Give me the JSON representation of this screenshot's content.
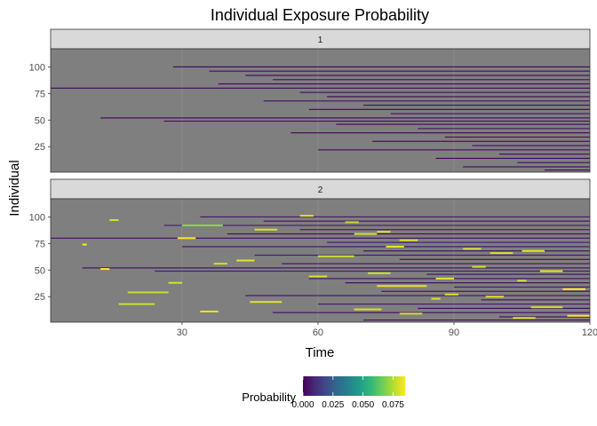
{
  "chart_data": {
    "type": "heatmap",
    "title": "Individual Exposure Probability",
    "xlabel": "Time",
    "ylabel": "Individual",
    "xlim": [
      1,
      120
    ],
    "ylim": [
      1,
      117
    ],
    "x_ticks": [
      30,
      60,
      90,
      120
    ],
    "y_ticks": [
      25,
      50,
      75,
      100
    ],
    "grid": true,
    "legend": {
      "title": "Probability",
      "position": "bottom",
      "tick_labels": [
        "0.000",
        "0.025",
        "0.050",
        "0.075"
      ],
      "min": 0.0,
      "max": 0.085
    },
    "colors": {
      "background": "#7F7F7F",
      "low": "#440154",
      "high": "#FDE725",
      "strip_fill": "#D9D9D9",
      "viridis": [
        "#440154",
        "#482878",
        "#3E4A89",
        "#31688E",
        "#26828E",
        "#1F9E89",
        "#35B779",
        "#6DCD59",
        "#B4DE2C",
        "#FDE725"
      ]
    },
    "facets": [
      {
        "label": "1",
        "description_of_values": "probability near zero; exposures start late",
        "rows": [
          {
            "id": 80,
            "start": 1,
            "value": 0.003
          },
          {
            "id": 100,
            "start": 28,
            "value": 0.002
          },
          {
            "id": 96,
            "start": 36,
            "value": 0.004
          },
          {
            "id": 92,
            "start": 44,
            "value": 0.003
          },
          {
            "id": 88,
            "start": 50,
            "value": 0.005
          },
          {
            "id": 84,
            "start": 38,
            "value": 0.002
          },
          {
            "id": 76,
            "start": 56,
            "value": 0.004
          },
          {
            "id": 72,
            "start": 62,
            "value": 0.003
          },
          {
            "id": 68,
            "start": 48,
            "value": 0.006
          },
          {
            "id": 64,
            "start": 70,
            "value": 0.004
          },
          {
            "id": 60,
            "start": 58,
            "value": 0.002
          },
          {
            "id": 56,
            "start": 76,
            "value": 0.005
          },
          {
            "id": 52,
            "start": 12,
            "value": 0.003
          },
          {
            "id": 49,
            "start": 26,
            "value": 0.004
          },
          {
            "id": 46,
            "start": 64,
            "value": 0.003
          },
          {
            "id": 42,
            "start": 82,
            "value": 0.006
          },
          {
            "id": 38,
            "start": 54,
            "value": 0.002
          },
          {
            "id": 34,
            "start": 88,
            "value": 0.004
          },
          {
            "id": 30,
            "start": 72,
            "value": 0.003
          },
          {
            "id": 26,
            "start": 94,
            "value": 0.005
          },
          {
            "id": 22,
            "start": 60,
            "value": 0.004
          },
          {
            "id": 18,
            "start": 100,
            "value": 0.003
          },
          {
            "id": 14,
            "start": 86,
            "value": 0.002
          },
          {
            "id": 10,
            "start": 104,
            "value": 0.005
          },
          {
            "id": 6,
            "start": 92,
            "value": 0.004
          },
          {
            "id": 3,
            "start": 110,
            "value": 0.003
          }
        ]
      },
      {
        "label": "2",
        "description_of_values": "mostly low probability with occasional high (yellow) exposure episodes",
        "rows": [
          {
            "id": 100,
            "start": 34,
            "value": 0.006
          },
          {
            "id": 96,
            "start": 48,
            "value": 0.004
          },
          {
            "id": 92,
            "start": 26,
            "value": 0.008
          },
          {
            "id": 88,
            "start": 56,
            "value": 0.005
          },
          {
            "id": 84,
            "start": 40,
            "value": 0.003
          },
          {
            "id": 80,
            "start": 1,
            "value": 0.004
          },
          {
            "id": 76,
            "start": 62,
            "value": 0.007
          },
          {
            "id": 72,
            "start": 30,
            "value": 0.005
          },
          {
            "id": 68,
            "start": 70,
            "value": 0.004
          },
          {
            "id": 64,
            "start": 46,
            "value": 0.006
          },
          {
            "id": 60,
            "start": 78,
            "value": 0.003
          },
          {
            "id": 56,
            "start": 52,
            "value": 0.005
          },
          {
            "id": 52,
            "start": 8,
            "value": 0.004
          },
          {
            "id": 49,
            "start": 24,
            "value": 0.006
          },
          {
            "id": 46,
            "start": 84,
            "value": 0.004
          },
          {
            "id": 42,
            "start": 58,
            "value": 0.005
          },
          {
            "id": 38,
            "start": 66,
            "value": 0.003
          },
          {
            "id": 34,
            "start": 90,
            "value": 0.006
          },
          {
            "id": 30,
            "start": 74,
            "value": 0.004
          },
          {
            "id": 26,
            "start": 44,
            "value": 0.005
          },
          {
            "id": 22,
            "start": 96,
            "value": 0.004
          },
          {
            "id": 18,
            "start": 60,
            "value": 0.006
          },
          {
            "id": 14,
            "start": 82,
            "value": 0.003
          },
          {
            "id": 10,
            "start": 50,
            "value": 0.005
          },
          {
            "id": 6,
            "start": 100,
            "value": 0.004
          },
          {
            "id": 3,
            "start": 70,
            "value": 0.005
          }
        ],
        "hotspots": [
          {
            "id": 101,
            "x0": 56,
            "x1": 59,
            "value": 0.082
          },
          {
            "id": 97,
            "x0": 14,
            "x1": 16,
            "value": 0.08
          },
          {
            "id": 95,
            "x0": 66,
            "x1": 69,
            "value": 0.078
          },
          {
            "id": 92,
            "x0": 30,
            "x1": 39,
            "value": 0.07
          },
          {
            "id": 88,
            "x0": 46,
            "x1": 51,
            "value": 0.08
          },
          {
            "id": 86,
            "x0": 73,
            "x1": 76,
            "value": 0.08
          },
          {
            "id": 84,
            "x0": 68,
            "x1": 73,
            "value": 0.078
          },
          {
            "id": 80,
            "x0": 29,
            "x1": 33,
            "value": 0.085
          },
          {
            "id": 78,
            "x0": 78,
            "x1": 82,
            "value": 0.08
          },
          {
            "id": 74,
            "x0": 8,
            "x1": 9,
            "value": 0.085
          },
          {
            "id": 72,
            "x0": 75,
            "x1": 79,
            "value": 0.082
          },
          {
            "id": 70,
            "x0": 92,
            "x1": 96,
            "value": 0.08
          },
          {
            "id": 68,
            "x0": 105,
            "x1": 110,
            "value": 0.082
          },
          {
            "id": 66,
            "x0": 98,
            "x1": 103,
            "value": 0.08
          },
          {
            "id": 63,
            "x0": 60,
            "x1": 68,
            "value": 0.08
          },
          {
            "id": 59,
            "x0": 42,
            "x1": 46,
            "value": 0.082
          },
          {
            "id": 56,
            "x0": 37,
            "x1": 40,
            "value": 0.078
          },
          {
            "id": 53,
            "x0": 94,
            "x1": 97,
            "value": 0.08
          },
          {
            "id": 51,
            "x0": 12,
            "x1": 14,
            "value": 0.085
          },
          {
            "id": 49,
            "x0": 109,
            "x1": 114,
            "value": 0.082
          },
          {
            "id": 47,
            "x0": 71,
            "x1": 76,
            "value": 0.078
          },
          {
            "id": 44,
            "x0": 58,
            "x1": 62,
            "value": 0.08
          },
          {
            "id": 42,
            "x0": 86,
            "x1": 90,
            "value": 0.082
          },
          {
            "id": 40,
            "x0": 104,
            "x1": 106,
            "value": 0.08
          },
          {
            "id": 38,
            "x0": 27,
            "x1": 30,
            "value": 0.08
          },
          {
            "id": 35,
            "x0": 73,
            "x1": 84,
            "value": 0.082
          },
          {
            "id": 32,
            "x0": 114,
            "x1": 119,
            "value": 0.085
          },
          {
            "id": 29,
            "x0": 18,
            "x1": 27,
            "value": 0.078
          },
          {
            "id": 27,
            "x0": 88,
            "x1": 91,
            "value": 0.08
          },
          {
            "id": 25,
            "x0": 97,
            "x1": 101,
            "value": 0.082
          },
          {
            "id": 23,
            "x0": 85,
            "x1": 87,
            "value": 0.08
          },
          {
            "id": 20,
            "x0": 45,
            "x1": 52,
            "value": 0.082
          },
          {
            "id": 18,
            "x0": 16,
            "x1": 24,
            "value": 0.078
          },
          {
            "id": 15,
            "x0": 107,
            "x1": 114,
            "value": 0.08
          },
          {
            "id": 13,
            "x0": 68,
            "x1": 74,
            "value": 0.08
          },
          {
            "id": 11,
            "x0": 34,
            "x1": 38,
            "value": 0.082
          },
          {
            "id": 9,
            "x0": 78,
            "x1": 83,
            "value": 0.08
          },
          {
            "id": 7,
            "x0": 115,
            "x1": 120,
            "value": 0.085
          },
          {
            "id": 5,
            "x0": 103,
            "x1": 108,
            "value": 0.08
          }
        ]
      }
    ]
  }
}
